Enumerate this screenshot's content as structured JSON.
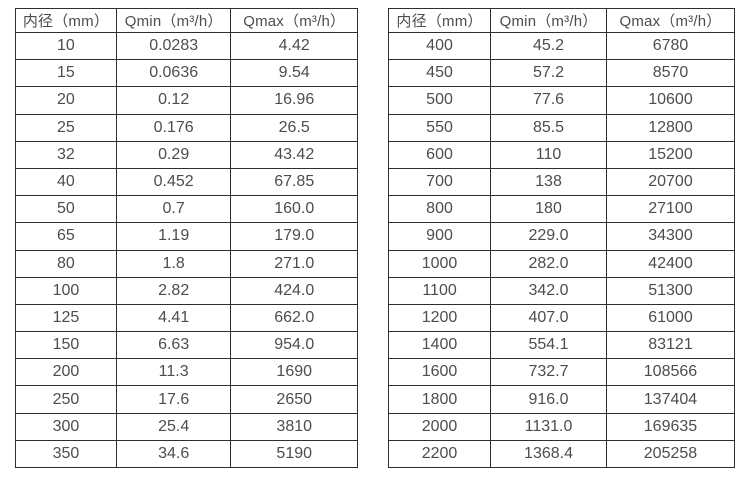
{
  "chart_data": [
    {
      "type": "table",
      "name": "flow-range-small-diameters",
      "columns": [
        "内径（mm）",
        "Qmin（m³/h）",
        "Qmax（m³/h）"
      ],
      "rows": [
        [
          "10",
          "0.0283",
          "4.42"
        ],
        [
          "15",
          "0.0636",
          "9.54"
        ],
        [
          "20",
          "0.12",
          "16.96"
        ],
        [
          "25",
          "0.176",
          "26.5"
        ],
        [
          "32",
          "0.29",
          "43.42"
        ],
        [
          "40",
          "0.452",
          "67.85"
        ],
        [
          "50",
          "0.7",
          "160.0"
        ],
        [
          "65",
          "1.19",
          "179.0"
        ],
        [
          "80",
          "1.8",
          "271.0"
        ],
        [
          "100",
          "2.82",
          "424.0"
        ],
        [
          "125",
          "4.41",
          "662.0"
        ],
        [
          "150",
          "6.63",
          "954.0"
        ],
        [
          "200",
          "11.3",
          "1690"
        ],
        [
          "250",
          "17.6",
          "2650"
        ],
        [
          "300",
          "25.4",
          "3810"
        ],
        [
          "350",
          "34.6",
          "5190"
        ]
      ]
    },
    {
      "type": "table",
      "name": "flow-range-large-diameters",
      "columns": [
        "内径（mm）",
        "Qmin（m³/h）",
        "Qmax（m³/h）"
      ],
      "rows": [
        [
          "400",
          "45.2",
          "6780"
        ],
        [
          "450",
          "57.2",
          "8570"
        ],
        [
          "500",
          "77.6",
          "10600"
        ],
        [
          "550",
          "85.5",
          "12800"
        ],
        [
          "600",
          "110",
          "15200"
        ],
        [
          "700",
          "138",
          "20700"
        ],
        [
          "800",
          "180",
          "27100"
        ],
        [
          "900",
          "229.0",
          "34300"
        ],
        [
          "1000",
          "282.0",
          "42400"
        ],
        [
          "1100",
          "342.0",
          "51300"
        ],
        [
          "1200",
          "407.0",
          "61000"
        ],
        [
          "1400",
          "554.1",
          "83121"
        ],
        [
          "1600",
          "732.7",
          "108566"
        ],
        [
          "1800",
          "916.0",
          "137404"
        ],
        [
          "2000",
          "1131.0",
          "169635"
        ],
        [
          "2200",
          "1368.4",
          "205258"
        ]
      ]
    }
  ],
  "colors": {
    "border": "#2e2e2e",
    "text": "#4d4d4d",
    "background": "#ffffff"
  }
}
